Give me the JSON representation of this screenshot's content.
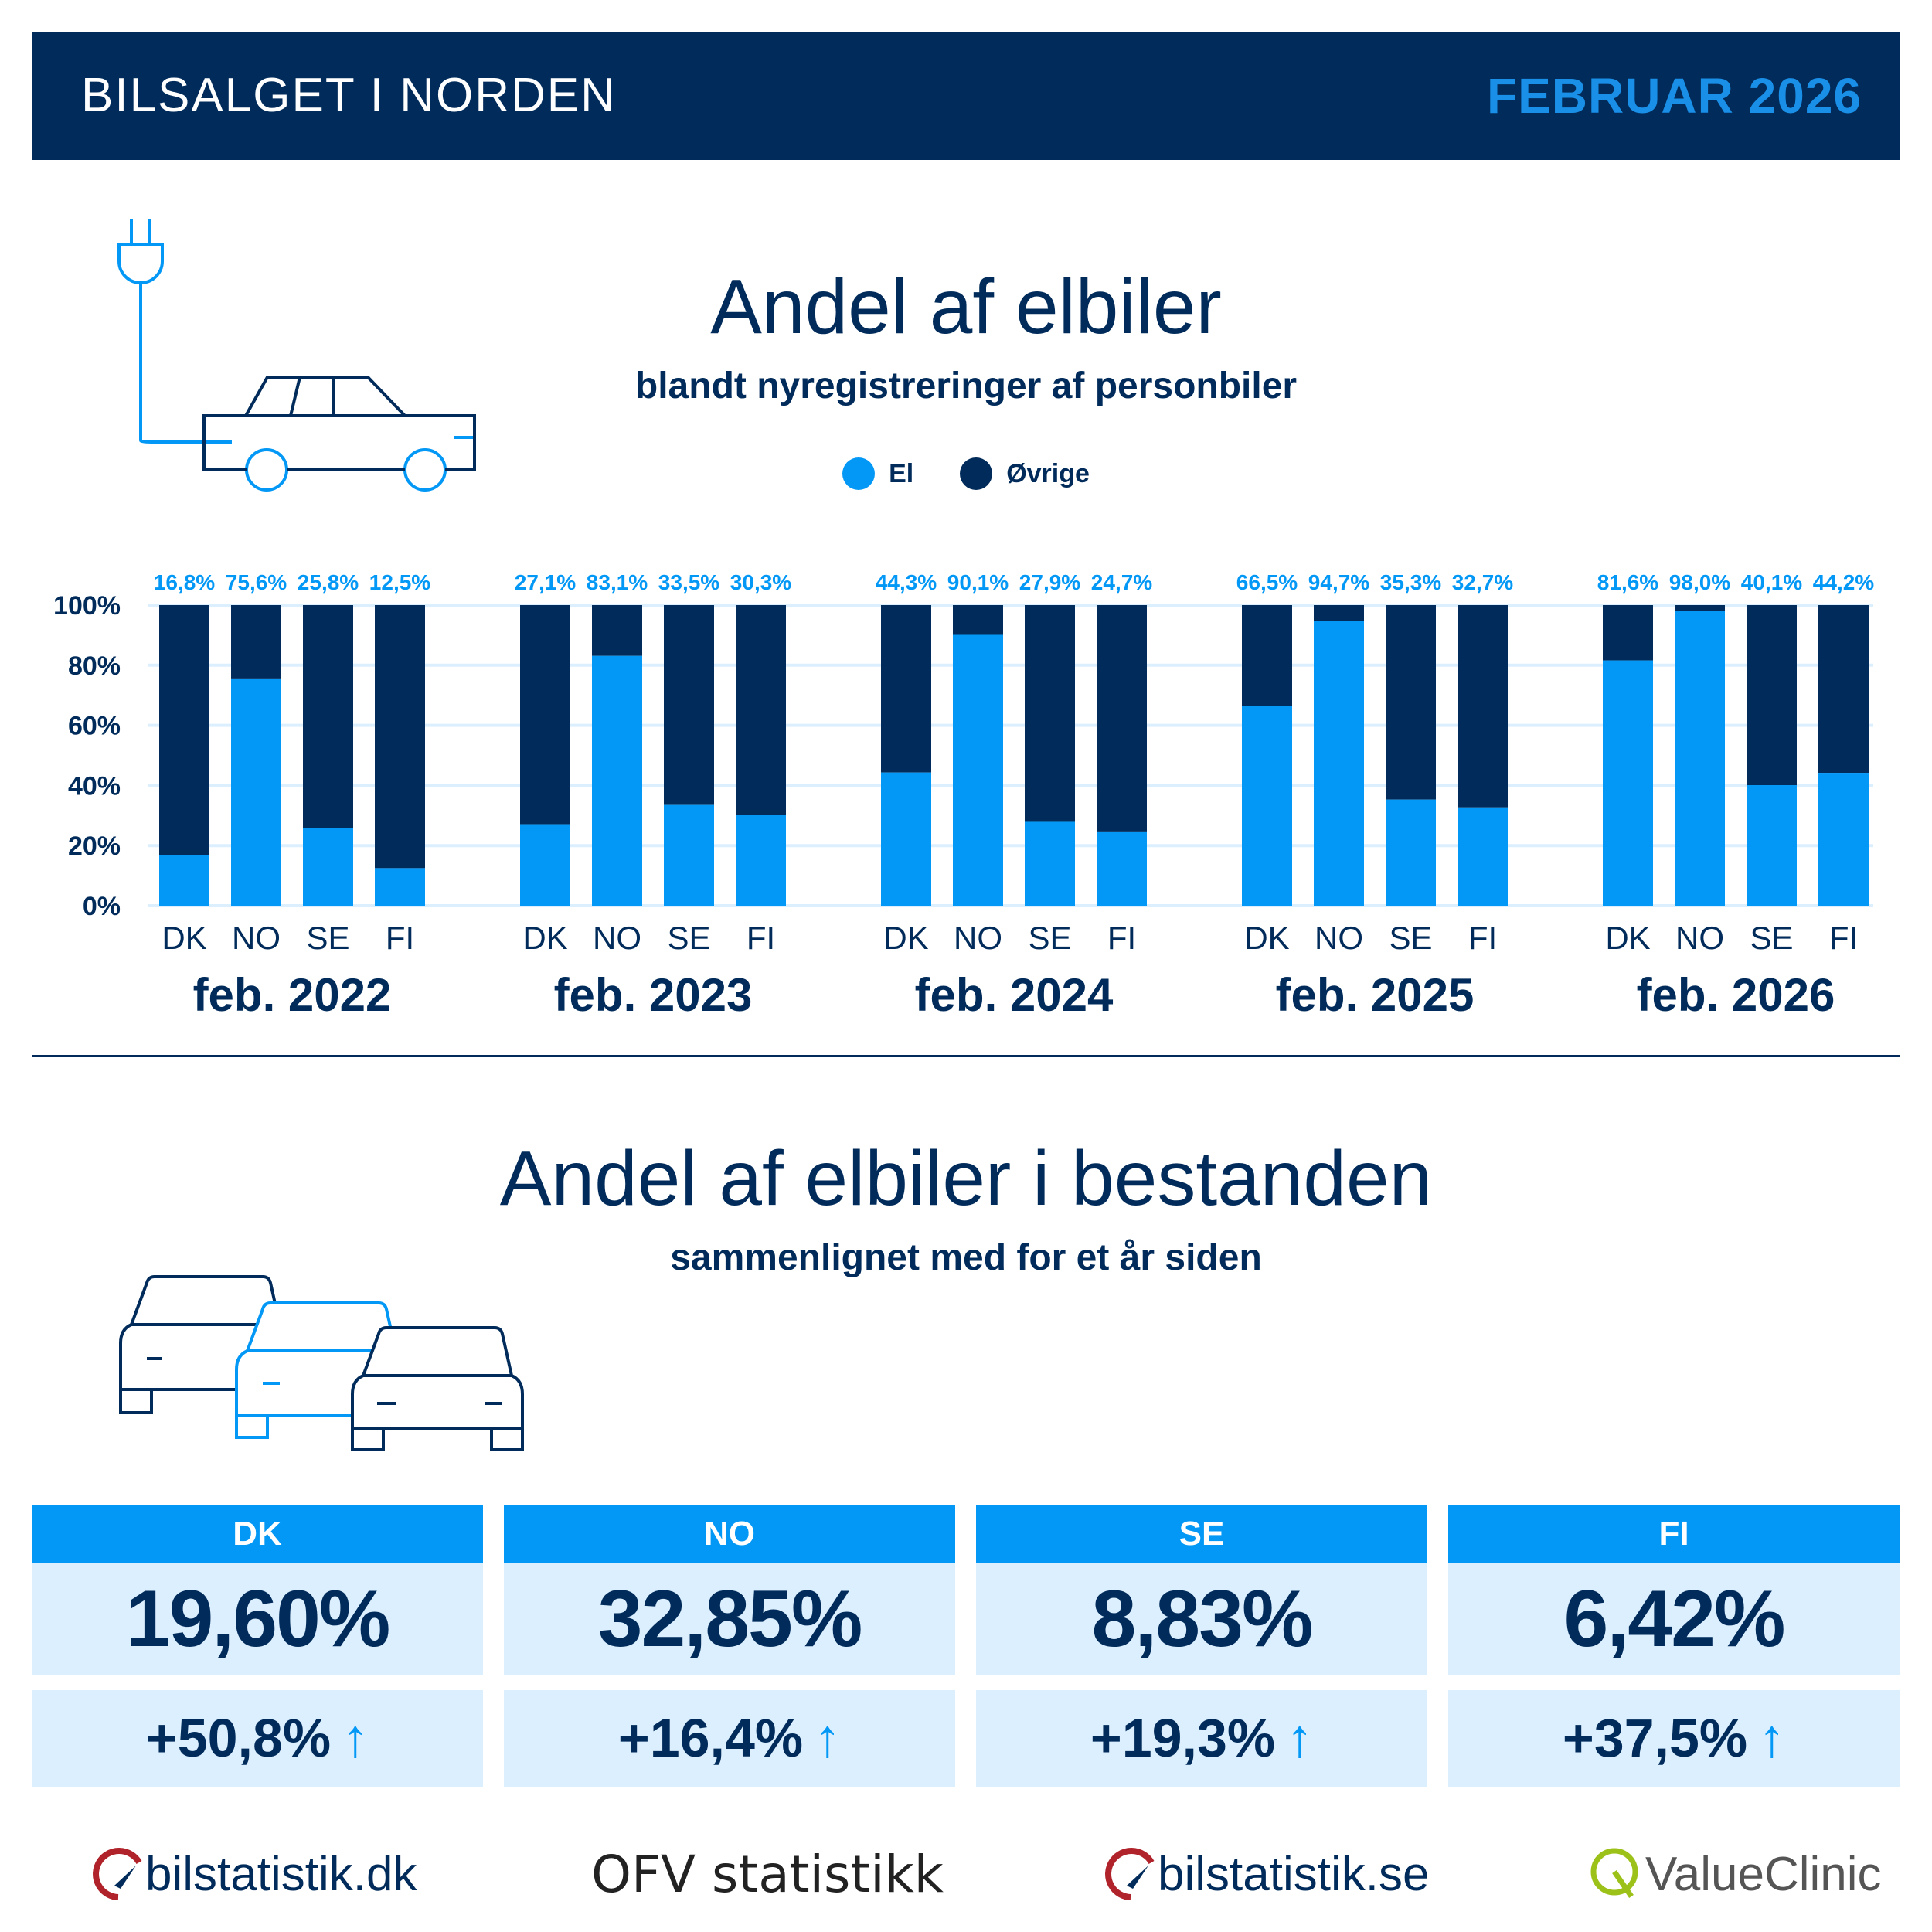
{
  "header": {
    "title": "BILSALGET I NORDEN",
    "date": "FEBRUAR 2026"
  },
  "section1": {
    "title": "Andel af elbiler",
    "subtitle": "blandt nyregistreringer af personbiler"
  },
  "colors": {
    "navy": "#002b5a",
    "blue": "#0398f5"
  },
  "chart_data": {
    "type": "bar",
    "stacked": true,
    "legend": [
      {
        "label": "El",
        "color": "#0398f5"
      },
      {
        "label": "Øvrige",
        "color": "#002b5a"
      }
    ],
    "legend_position": "top",
    "yticks": [
      "0%",
      "20%",
      "40%",
      "60%",
      "80%",
      "100%"
    ],
    "ylim": [
      0,
      100
    ],
    "grid": true,
    "countries": [
      "DK",
      "NO",
      "SE",
      "FI"
    ],
    "groups": [
      {
        "label": "feb. 2022",
        "el": [
          16.8,
          75.6,
          25.8,
          12.5
        ],
        "labels": [
          "16,8%",
          "75,6%",
          "25,8%",
          "12,5%"
        ]
      },
      {
        "label": "feb. 2023",
        "el": [
          27.1,
          83.1,
          33.5,
          30.3
        ],
        "labels": [
          "27,1%",
          "83,1%",
          "33,5%",
          "30,3%"
        ]
      },
      {
        "label": "feb. 2024",
        "el": [
          44.3,
          90.1,
          27.9,
          24.7
        ],
        "labels": [
          "44,3%",
          "90,1%",
          "27,9%",
          "24,7%"
        ]
      },
      {
        "label": "feb. 2025",
        "el": [
          66.5,
          94.7,
          35.3,
          32.7
        ],
        "labels": [
          "66,5%",
          "94,7%",
          "35,3%",
          "32,7%"
        ]
      },
      {
        "label": "feb. 2026",
        "el": [
          81.6,
          98.0,
          40.1,
          44.2
        ],
        "labels": [
          "81,6%",
          "98,0%",
          "40,1%",
          "44,2%"
        ]
      }
    ]
  },
  "section2": {
    "title": "Andel af elbiler i bestanden",
    "subtitle": "sammenlignet med for et år siden"
  },
  "cards": [
    {
      "country": "DK",
      "value": "19,60%",
      "change": "+50,8%"
    },
    {
      "country": "NO",
      "value": "32,85%",
      "change": "+16,4%"
    },
    {
      "country": "SE",
      "value": "8,83%",
      "change": "+19,3%"
    },
    {
      "country": "FI",
      "value": "6,42%",
      "change": "+37,5%"
    }
  ],
  "arrow": "↑",
  "logos": [
    "bilstatistik.dk",
    "OFV statistikk",
    "bilstatistik.se",
    "ValueClinic"
  ]
}
